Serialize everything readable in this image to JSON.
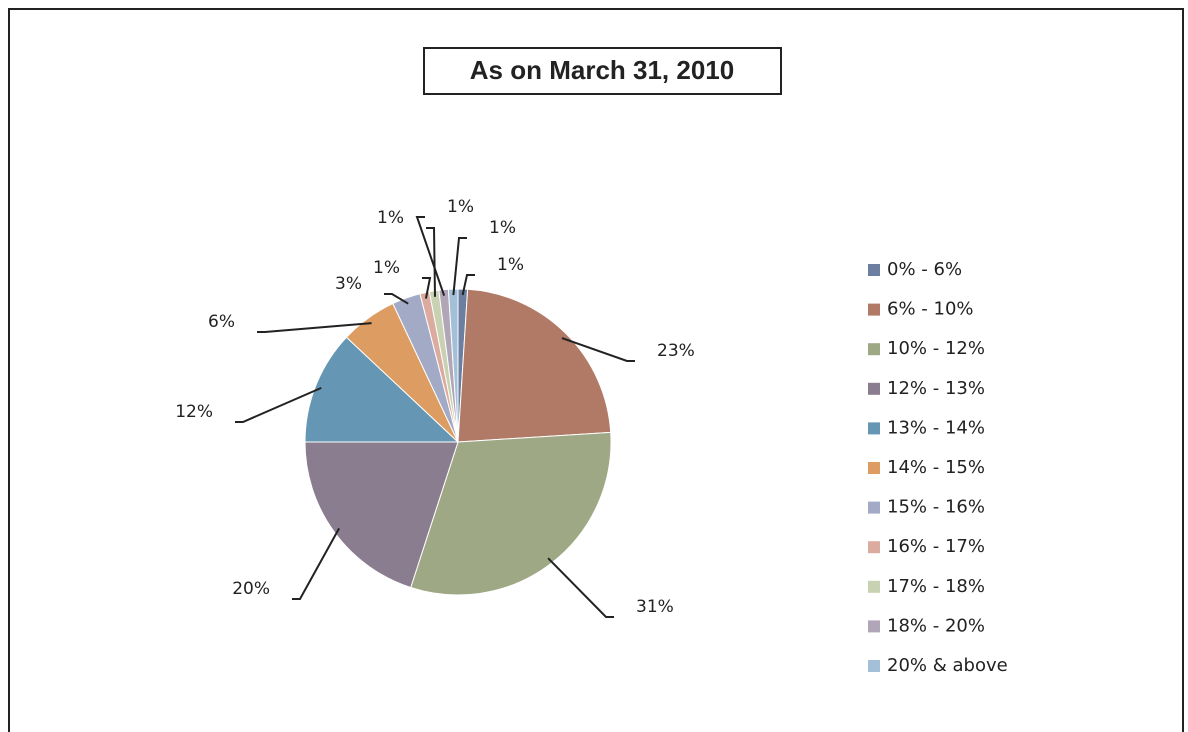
{
  "chart_data": {
    "type": "pie",
    "title": "As on March 31, 2010",
    "categories": [
      "0% - 6%",
      "6% - 10%",
      "10% - 12%",
      "12% - 13%",
      "13% - 14%",
      "14% - 15%",
      "15% - 16%",
      "16% - 17%",
      "17% - 18%",
      "18% - 20%",
      "20% & above"
    ],
    "values": [
      1,
      23,
      31,
      20,
      12,
      6,
      3,
      1,
      1,
      1,
      1
    ],
    "value_labels": [
      "1%",
      "23%",
      "31%",
      "20%",
      "12%",
      "6%",
      "3%",
      "1%",
      "1%",
      "1%",
      "1%"
    ],
    "colors": [
      "#6d7fa0",
      "#b07a66",
      "#9fa884",
      "#8a7d8f",
      "#6597b4",
      "#dd9d62",
      "#a2aac6",
      "#dcab9f",
      "#c8d1b1",
      "#b0a6b8",
      "#a3c0d8"
    ],
    "legend": "right"
  }
}
